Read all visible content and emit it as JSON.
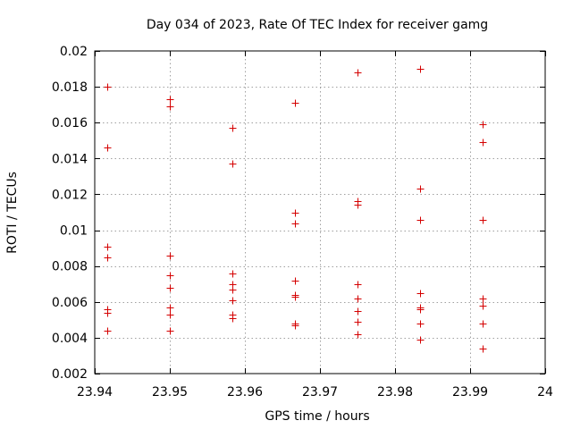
{
  "chart_data": {
    "type": "scatter",
    "title": "Day 034 of 2023, Rate Of TEC Index for receiver gamg",
    "xlabel": "GPS time / hours",
    "ylabel": "ROTI / TECUs",
    "xlim": [
      23.94,
      24.0
    ],
    "ylim": [
      0.002,
      0.02
    ],
    "xticks": [
      23.94,
      23.95,
      23.96,
      23.97,
      23.98,
      23.99,
      24.0
    ],
    "xtick_labels": [
      "23.94",
      "23.95",
      "23.96",
      "23.97",
      "23.98",
      "23.99",
      "24"
    ],
    "yticks": [
      0.002,
      0.004,
      0.006,
      0.008,
      0.01,
      0.012,
      0.014,
      0.016,
      0.018,
      0.02
    ],
    "ytick_labels": [
      "0.002",
      "0.004",
      "0.006",
      "0.008",
      "0.01",
      "0.012",
      "0.014",
      "0.016",
      "0.018",
      "0.02"
    ],
    "grid": true,
    "marker": "+",
    "color": "#d40000",
    "series": [
      {
        "name": "gamg",
        "points": [
          [
            23.9417,
            0.018
          ],
          [
            23.9417,
            0.0146
          ],
          [
            23.9417,
            0.0091
          ],
          [
            23.9417,
            0.0085
          ],
          [
            23.9417,
            0.0056
          ],
          [
            23.9417,
            0.0054
          ],
          [
            23.9417,
            0.0044
          ],
          [
            23.95,
            0.0173
          ],
          [
            23.95,
            0.0169
          ],
          [
            23.95,
            0.0086
          ],
          [
            23.95,
            0.0075
          ],
          [
            23.95,
            0.0068
          ],
          [
            23.95,
            0.0057
          ],
          [
            23.95,
            0.0053
          ],
          [
            23.95,
            0.0044
          ],
          [
            23.9583,
            0.0157
          ],
          [
            23.9583,
            0.0137
          ],
          [
            23.9583,
            0.0076
          ],
          [
            23.9583,
            0.007
          ],
          [
            23.9583,
            0.0067
          ],
          [
            23.9583,
            0.0061
          ],
          [
            23.9583,
            0.0053
          ],
          [
            23.9583,
            0.0051
          ],
          [
            23.9667,
            0.0171
          ],
          [
            23.9667,
            0.011
          ],
          [
            23.9667,
            0.0104
          ],
          [
            23.9667,
            0.0072
          ],
          [
            23.9667,
            0.0064
          ],
          [
            23.9667,
            0.0063
          ],
          [
            23.9667,
            0.0048
          ],
          [
            23.9667,
            0.0047
          ],
          [
            23.975,
            0.0188
          ],
          [
            23.975,
            0.0116
          ],
          [
            23.975,
            0.0114
          ],
          [
            23.975,
            0.007
          ],
          [
            23.975,
            0.0062
          ],
          [
            23.975,
            0.0055
          ],
          [
            23.975,
            0.0049
          ],
          [
            23.975,
            0.0042
          ],
          [
            23.9833,
            0.019
          ],
          [
            23.9833,
            0.0123
          ],
          [
            23.9833,
            0.0106
          ],
          [
            23.9833,
            0.0065
          ],
          [
            23.9833,
            0.0057
          ],
          [
            23.9833,
            0.0056
          ],
          [
            23.9833,
            0.0048
          ],
          [
            23.9833,
            0.0039
          ],
          [
            23.9917,
            0.0159
          ],
          [
            23.9917,
            0.0149
          ],
          [
            23.9917,
            0.0106
          ],
          [
            23.9917,
            0.0062
          ],
          [
            23.9917,
            0.0058
          ],
          [
            23.9917,
            0.0048
          ],
          [
            23.9917,
            0.0034
          ]
        ]
      }
    ]
  }
}
